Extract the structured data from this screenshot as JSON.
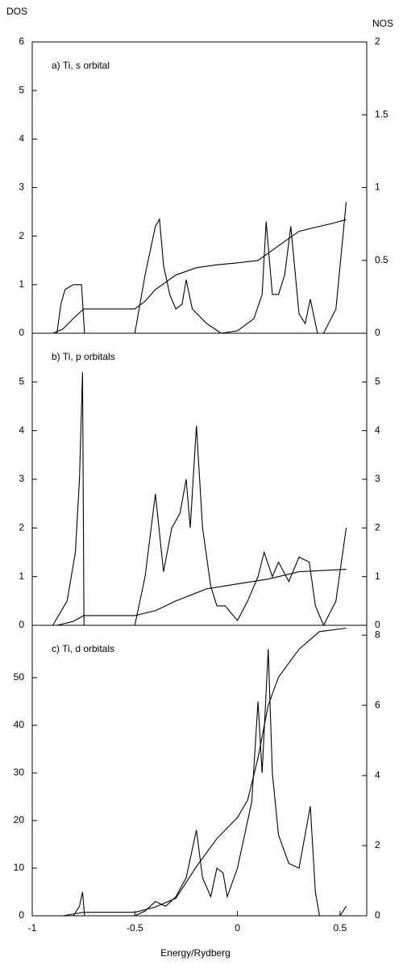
{
  "chart_data": [
    {
      "type": "line",
      "title": "a) Ti, s orbital",
      "ylabel": "DOS",
      "y2label": "NOS",
      "xlim": [
        -1,
        0.63
      ],
      "ylim": [
        0,
        6
      ],
      "yticks": [
        0,
        1,
        2,
        3,
        4,
        5,
        6
      ],
      "y2lim": [
        0,
        2
      ],
      "y2ticks": [
        0,
        0.5,
        1,
        1.5,
        2
      ],
      "series": [
        {
          "name": "DOS",
          "color": "#000000",
          "x": [
            -1,
            -0.88,
            -0.86,
            -0.84,
            -0.8,
            -0.76,
            -0.745,
            -0.5,
            -0.45,
            -0.4,
            -0.38,
            -0.36,
            -0.33,
            -0.3,
            -0.27,
            -0.25,
            -0.22,
            -0.15,
            -0.08,
            0,
            0.08,
            0.12,
            0.14,
            0.17,
            0.2,
            0.23,
            0.26,
            0.3,
            0.33,
            0.355,
            0.39,
            0.42,
            0.48,
            0.53
          ],
          "values": [
            0,
            0,
            0.6,
            0.9,
            1.0,
            1.0,
            0,
            0,
            1.2,
            2.2,
            2.35,
            1.4,
            0.8,
            0.5,
            0.6,
            1.1,
            0.5,
            0.2,
            0,
            0.05,
            0.3,
            0.8,
            2.3,
            0.8,
            0.8,
            1.2,
            2.2,
            0.4,
            0.2,
            0.7,
            0,
            0,
            0.5,
            2.7
          ]
        },
        {
          "name": "NOS",
          "color": "#000000",
          "axis": "y2",
          "x": [
            -0.9,
            -0.85,
            -0.8,
            -0.75,
            -0.5,
            -0.45,
            -0.4,
            -0.3,
            -0.2,
            -0.1,
            0,
            0.1,
            0.2,
            0.3,
            0.45,
            0.53
          ],
          "values": [
            0,
            0.03,
            0.1,
            0.167,
            0.167,
            0.22,
            0.3,
            0.4,
            0.45,
            0.47,
            0.483,
            0.5,
            0.6,
            0.7,
            0.75,
            0.78
          ]
        }
      ]
    },
    {
      "type": "line",
      "title": "b) Ti, p orbitals",
      "xlim": [
        -1,
        0.63
      ],
      "ylim": [
        0,
        6
      ],
      "yticks": [
        0,
        1,
        2,
        3,
        4,
        5
      ],
      "y2lim": [
        0,
        6
      ],
      "y2ticks": [
        0,
        1,
        2,
        3,
        4,
        5
      ],
      "series": [
        {
          "name": "DOS",
          "color": "#000000",
          "x": [
            -1,
            -0.9,
            -0.83,
            -0.79,
            -0.77,
            -0.755,
            -0.748,
            -0.5,
            -0.45,
            -0.4,
            -0.36,
            -0.32,
            -0.28,
            -0.25,
            -0.23,
            -0.2,
            -0.17,
            -0.13,
            -0.1,
            -0.06,
            0,
            0.05,
            0.1,
            0.13,
            0.17,
            0.2,
            0.25,
            0.3,
            0.35,
            0.38,
            0.42,
            0.48,
            0.53
          ],
          "values": [
            0,
            0,
            0.5,
            1.5,
            3,
            5.2,
            0,
            0,
            1,
            2.7,
            1.1,
            2,
            2.3,
            3,
            2,
            4.1,
            2,
            0.8,
            0.4,
            0.4,
            0.1,
            0.5,
            1,
            1.5,
            1,
            1.3,
            0.9,
            1.4,
            1.3,
            0.4,
            0,
            0.5,
            2
          ]
        },
        {
          "name": "NOS",
          "color": "#000000",
          "axis": "y2",
          "x": [
            -0.88,
            -0.8,
            -0.75,
            -0.5,
            -0.4,
            -0.3,
            -0.15,
            0,
            0.15,
            0.3,
            0.53
          ],
          "values": [
            0,
            0.08,
            0.2,
            0.2,
            0.3,
            0.5,
            0.75,
            0.85,
            0.95,
            1.1,
            1.15
          ]
        }
      ]
    },
    {
      "type": "line",
      "title": "c) Ti, d orbitals",
      "xlabel": "Energy/Rydberg",
      "xlim": [
        -1,
        0.63
      ],
      "xticks": [
        -1,
        -0.5,
        0,
        0.5
      ],
      "ylim": [
        0,
        61
      ],
      "yticks": [
        0,
        10,
        20,
        30,
        40,
        50
      ],
      "y2lim": [
        0,
        8.28
      ],
      "y2ticks": [
        0,
        2,
        4,
        6,
        8
      ],
      "series": [
        {
          "name": "DOS",
          "color": "#000000",
          "x": [
            -1,
            -0.8,
            -0.77,
            -0.755,
            -0.745,
            -0.5,
            -0.45,
            -0.4,
            -0.35,
            -0.3,
            -0.25,
            -0.2,
            -0.17,
            -0.13,
            -0.1,
            -0.07,
            -0.05,
            0,
            0.07,
            0.1,
            0.12,
            0.15,
            0.17,
            0.2,
            0.25,
            0.3,
            0.355,
            0.38,
            0.4,
            0.5,
            0.53
          ],
          "values": [
            0,
            0,
            2,
            5,
            0,
            0,
            1,
            3,
            2,
            4,
            8,
            18,
            8,
            4,
            10,
            9,
            4,
            10,
            24,
            45,
            30,
            56,
            30,
            17,
            11,
            10,
            23,
            5,
            0,
            0,
            2
          ]
        },
        {
          "name": "NOS",
          "color": "#000000",
          "axis": "y2",
          "x": [
            -0.85,
            -0.75,
            -0.5,
            -0.4,
            -0.3,
            -0.2,
            -0.1,
            0,
            0.05,
            0.1,
            0.15,
            0.2,
            0.3,
            0.4,
            0.53
          ],
          "values": [
            0,
            0.1,
            0.1,
            0.25,
            0.5,
            1.4,
            2.2,
            2.8,
            3.3,
            4.5,
            6.0,
            6.8,
            7.6,
            8.1,
            8.2
          ]
        }
      ]
    }
  ]
}
